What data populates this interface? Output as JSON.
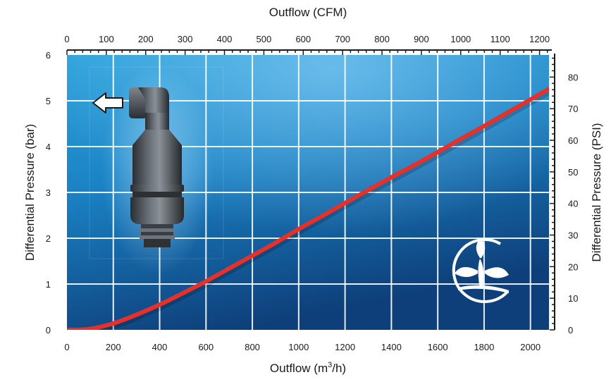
{
  "chart_data": {
    "type": "line",
    "title": "",
    "xlabel": "Outflow (m³/h)",
    "xlabel_base": "Outflow (m",
    "xlabel_sup": "3",
    "xlabel_tail": "/h)",
    "x2label": "Outflow (CFM)",
    "ylabel": "Differential Pressure (bar)",
    "y2label": "Differential Pressure (PSI)",
    "xlim": [
      0,
      2080
    ],
    "ylim": [
      0,
      6
    ],
    "x2lim": [
      0,
      1224
    ],
    "y2lim": [
      0,
      87
    ],
    "x_ticks": [
      0,
      200,
      400,
      600,
      800,
      1000,
      1200,
      1400,
      1600,
      1800,
      2000
    ],
    "y_ticks": [
      0,
      1,
      2,
      3,
      4,
      5,
      6
    ],
    "x2_ticks": [
      0,
      100,
      200,
      300,
      400,
      500,
      600,
      700,
      800,
      900,
      1000,
      1100,
      1200
    ],
    "y2_ticks": [
      0,
      10,
      20,
      30,
      40,
      50,
      60,
      70,
      80
    ],
    "x_tick_labels": [
      "0",
      "200",
      "400",
      "600",
      "800",
      "1000",
      "1200",
      "1400",
      "1600",
      "1800",
      "2000"
    ],
    "y_tick_labels": [
      "0",
      "1",
      "2",
      "3",
      "4",
      "5",
      "6"
    ],
    "x2_tick_labels": [
      "0",
      "100",
      "200",
      "300",
      "400",
      "500",
      "600",
      "700",
      "800",
      "900",
      "1000",
      "1100",
      "1200"
    ],
    "y2_tick_labels": [
      "0",
      "10",
      "20",
      "30",
      "40",
      "50",
      "60",
      "70",
      "80"
    ],
    "grid": true,
    "series": [
      {
        "color": "#e8302a",
        "x": [
          0,
          100,
          200,
          300,
          400,
          500,
          600,
          700,
          800,
          900,
          1000,
          1100,
          1200,
          1300,
          1400,
          1500,
          1600,
          1700,
          1800,
          1900,
          2000,
          2080
        ],
        "y": [
          0,
          0.02,
          0.14,
          0.33,
          0.55,
          0.8,
          1.06,
          1.34,
          1.62,
          1.9,
          2.2,
          2.48,
          2.77,
          3.05,
          3.33,
          3.6,
          3.88,
          4.17,
          4.45,
          4.74,
          5.03,
          5.26
        ]
      }
    ],
    "colors": {
      "background_top": "#2b9bd6",
      "background_bottom": "#0d3f78",
      "grid": "#ffffff",
      "curve": "#e8302a"
    }
  },
  "graphics": {
    "product_image": "air-valve-product-image",
    "arrow_icon": "arrow-left-icon",
    "logo": "leaf-in-circle-logo"
  }
}
